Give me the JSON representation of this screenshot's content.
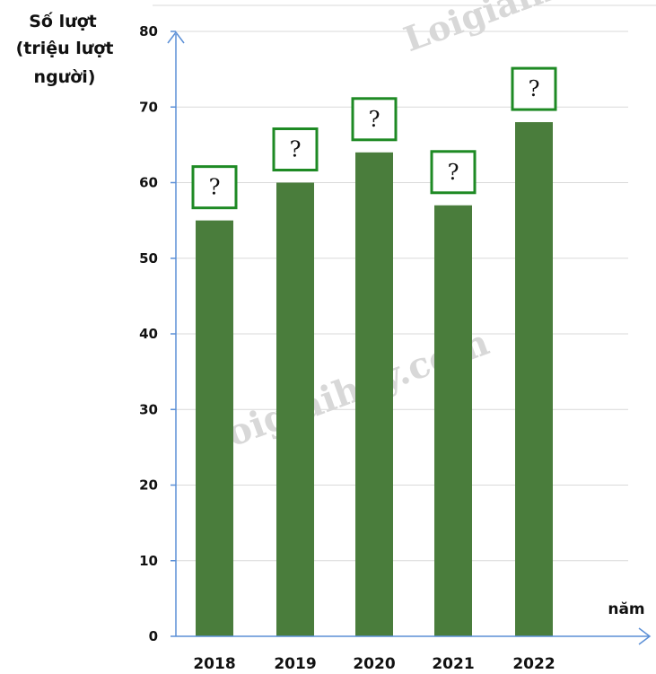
{
  "chart_data": {
    "type": "bar",
    "categories": [
      "2018",
      "2019",
      "2020",
      "2021",
      "2022"
    ],
    "values": [
      55,
      60,
      64,
      57,
      68
    ],
    "value_labels": [
      "?",
      "?",
      "?",
      "?",
      "?"
    ],
    "ylabel_lines": [
      "Số lượt",
      "(triệu lượt",
      "người)"
    ],
    "xlabel": "năm",
    "ylim": [
      0,
      80
    ],
    "yticks": [
      0,
      10,
      20,
      30,
      40,
      50,
      60,
      70,
      80
    ],
    "grid": true,
    "colors": {
      "bar": "#4a7d3c",
      "label_box": "#1e8a24",
      "axis": "#5b8fd6",
      "grid": "#d9d9d9"
    }
  },
  "watermarks": [
    "Loigiaihay.com",
    "Loigiaihay"
  ]
}
